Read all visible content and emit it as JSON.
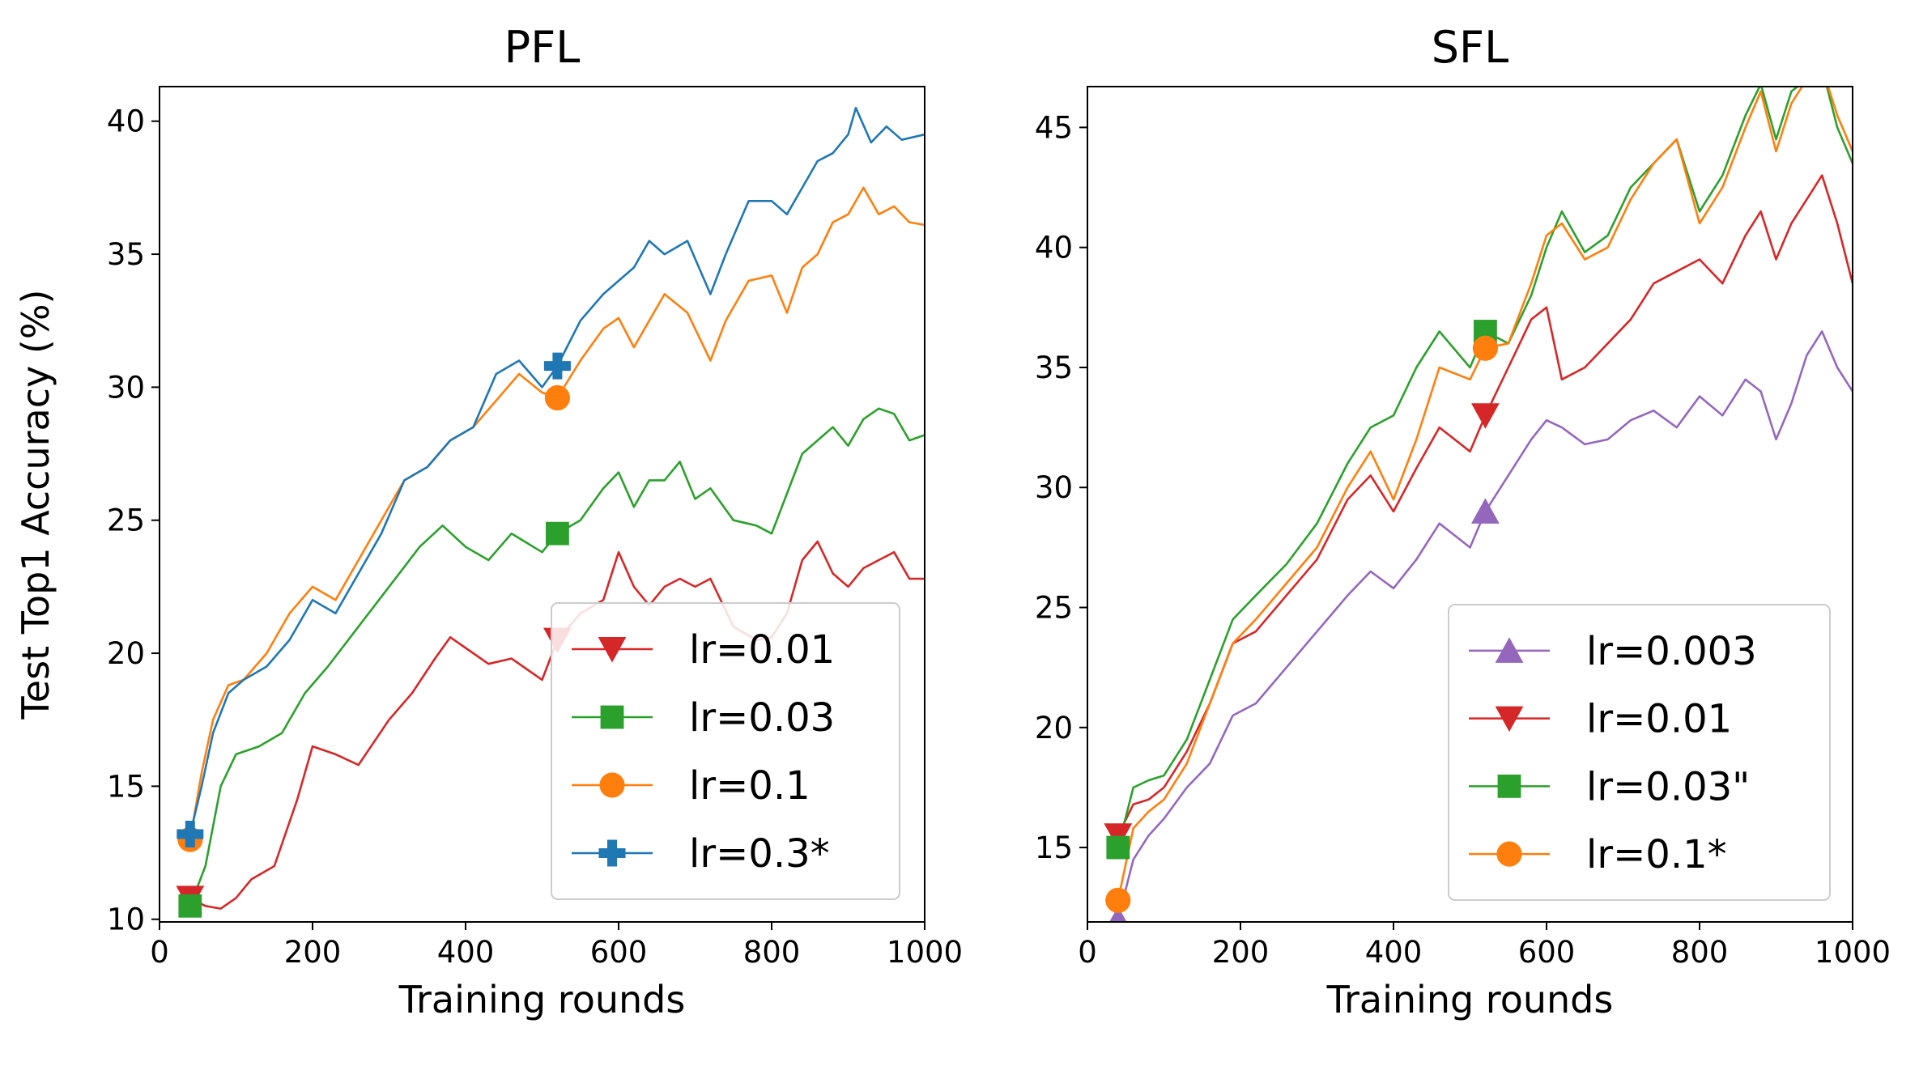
{
  "chart_data": [
    {
      "type": "line",
      "title": "PFL",
      "xlabel": "Training rounds",
      "ylabel": "Test Top1 Accuracy (%)",
      "xlim": [
        0,
        1000
      ],
      "ylim": [
        9.9,
        41.3
      ],
      "xticks": [
        0,
        200,
        400,
        600,
        800,
        1000
      ],
      "yticks": [
        10,
        15,
        20,
        25,
        30,
        35,
        40
      ],
      "grid": false,
      "legend_position": "lower-right",
      "series": [
        {
          "name": "lr=0.01",
          "color": "#d62728",
          "marker": "triangle-down",
          "x": [
            40,
            60,
            80,
            100,
            120,
            150,
            180,
            200,
            230,
            260,
            300,
            330,
            360,
            380,
            400,
            430,
            460,
            500,
            520,
            550,
            580,
            600,
            620,
            640,
            660,
            680,
            700,
            720,
            750,
            780,
            800,
            820,
            840,
            860,
            880,
            900,
            920,
            940,
            960,
            980,
            1000
          ],
          "y": [
            10.8,
            10.5,
            10.4,
            10.8,
            11.5,
            12.0,
            14.5,
            16.5,
            16.2,
            15.8,
            17.5,
            18.5,
            19.8,
            20.6,
            20.2,
            19.6,
            19.8,
            19.0,
            20.5,
            21.5,
            22.0,
            23.8,
            22.5,
            21.8,
            22.5,
            22.8,
            22.5,
            22.8,
            21.0,
            20.5,
            20.6,
            21.5,
            23.5,
            24.2,
            23.0,
            22.5,
            23.2,
            23.5,
            23.8,
            22.8,
            22.8
          ]
        },
        {
          "name": "lr=0.03",
          "color": "#2ca02c",
          "marker": "square",
          "x": [
            40,
            60,
            80,
            100,
            130,
            160,
            190,
            220,
            260,
            300,
            340,
            370,
            400,
            430,
            460,
            500,
            520,
            550,
            580,
            600,
            620,
            640,
            660,
            680,
            700,
            720,
            750,
            780,
            800,
            820,
            840,
            860,
            880,
            900,
            920,
            940,
            960,
            980,
            1000
          ],
          "y": [
            10.5,
            12.0,
            15.0,
            16.2,
            16.5,
            17.0,
            18.5,
            19.5,
            21.0,
            22.5,
            24.0,
            24.8,
            24.0,
            23.5,
            24.5,
            23.8,
            24.5,
            25.0,
            26.2,
            26.8,
            25.5,
            26.5,
            26.5,
            27.2,
            25.8,
            26.2,
            25.0,
            24.8,
            24.5,
            26.0,
            27.5,
            28.0,
            28.5,
            27.8,
            28.8,
            29.2,
            29.0,
            28.0,
            28.2
          ]
        },
        {
          "name": "lr=0.1",
          "color": "#ff7f0e",
          "marker": "circle",
          "x": [
            40,
            55,
            70,
            90,
            110,
            140,
            170,
            200,
            230,
            260,
            290,
            320,
            350,
            380,
            410,
            440,
            470,
            500,
            520,
            550,
            580,
            600,
            620,
            640,
            660,
            690,
            720,
            740,
            770,
            800,
            820,
            840,
            860,
            880,
            900,
            920,
            940,
            960,
            980,
            1000
          ],
          "y": [
            13.0,
            15.5,
            17.5,
            18.8,
            19.0,
            20.0,
            21.5,
            22.5,
            22.0,
            23.5,
            25.0,
            26.5,
            27.0,
            28.0,
            28.5,
            29.5,
            30.5,
            29.8,
            29.6,
            31.0,
            32.2,
            32.6,
            31.5,
            32.5,
            33.5,
            32.8,
            31.0,
            32.5,
            34.0,
            34.2,
            32.8,
            34.5,
            35.0,
            36.2,
            36.5,
            37.5,
            36.5,
            36.8,
            36.2,
            36.1
          ]
        },
        {
          "name": "lr=0.3*",
          "color": "#1f77b4",
          "marker": "plus",
          "x": [
            40,
            55,
            70,
            90,
            110,
            140,
            170,
            200,
            230,
            260,
            290,
            320,
            350,
            380,
            410,
            440,
            470,
            500,
            520,
            550,
            580,
            600,
            620,
            640,
            660,
            690,
            720,
            740,
            770,
            800,
            820,
            840,
            860,
            880,
            900,
            910,
            930,
            950,
            970,
            1000
          ],
          "y": [
            13.2,
            15.0,
            17.0,
            18.5,
            19.0,
            19.5,
            20.5,
            22.0,
            21.5,
            23.0,
            24.5,
            26.5,
            27.0,
            28.0,
            28.5,
            30.5,
            31.0,
            30.0,
            30.8,
            32.5,
            33.5,
            34.0,
            34.5,
            35.5,
            35.0,
            35.5,
            33.5,
            35.0,
            37.0,
            37.0,
            36.5,
            37.5,
            38.5,
            38.8,
            39.5,
            40.5,
            39.2,
            39.8,
            39.3,
            39.5
          ]
        }
      ]
    },
    {
      "type": "line",
      "title": "SFL",
      "xlabel": "Training rounds",
      "ylabel": "",
      "xlim": [
        0,
        1000
      ],
      "ylim": [
        11.9,
        46.7
      ],
      "xticks": [
        0,
        200,
        400,
        600,
        800,
        1000
      ],
      "yticks": [
        15,
        20,
        25,
        30,
        35,
        40,
        45
      ],
      "grid": false,
      "legend_position": "lower-right",
      "series": [
        {
          "name": "lr=0.003",
          "color": "#9467bd",
          "marker": "triangle-up",
          "x": [
            40,
            60,
            80,
            100,
            130,
            160,
            190,
            220,
            260,
            300,
            340,
            370,
            400,
            430,
            460,
            500,
            520,
            550,
            580,
            600,
            620,
            650,
            680,
            710,
            740,
            770,
            800,
            830,
            860,
            880,
            900,
            920,
            940,
            960,
            980,
            1000
          ],
          "y": [
            12.0,
            14.5,
            15.5,
            16.2,
            17.5,
            18.5,
            20.5,
            21.0,
            22.5,
            24.0,
            25.5,
            26.5,
            25.8,
            27.0,
            28.5,
            27.5,
            29.0,
            30.5,
            32.0,
            32.8,
            32.5,
            31.8,
            32.0,
            32.8,
            33.2,
            32.5,
            33.8,
            33.0,
            34.5,
            34.0,
            32.0,
            33.5,
            35.5,
            36.5,
            35.0,
            34.0
          ]
        },
        {
          "name": "lr=0.01",
          "color": "#d62728",
          "marker": "triangle-down",
          "x": [
            40,
            60,
            80,
            100,
            130,
            160,
            190,
            220,
            260,
            300,
            340,
            370,
            400,
            430,
            460,
            500,
            520,
            550,
            580,
            600,
            620,
            650,
            680,
            710,
            740,
            770,
            800,
            830,
            860,
            880,
            900,
            920,
            940,
            960,
            980,
            1000
          ],
          "y": [
            15.5,
            16.8,
            17.0,
            17.5,
            19.0,
            21.0,
            23.5,
            24.0,
            25.5,
            27.0,
            29.5,
            30.5,
            29.0,
            30.8,
            32.5,
            31.5,
            33.0,
            35.0,
            37.0,
            37.5,
            34.5,
            35.0,
            36.0,
            37.0,
            38.5,
            39.0,
            39.5,
            38.5,
            40.5,
            41.5,
            39.5,
            41.0,
            42.0,
            43.0,
            41.0,
            38.5
          ]
        },
        {
          "name": "lr=0.03\"",
          "color": "#2ca02c",
          "marker": "square",
          "x": [
            40,
            60,
            80,
            100,
            130,
            160,
            190,
            220,
            260,
            300,
            340,
            370,
            400,
            430,
            460,
            500,
            520,
            550,
            580,
            600,
            620,
            650,
            680,
            710,
            740,
            770,
            800,
            830,
            860,
            880,
            900,
            920,
            940,
            960,
            980,
            1000
          ],
          "y": [
            15.0,
            17.5,
            17.8,
            18.0,
            19.5,
            22.0,
            24.5,
            25.5,
            26.8,
            28.5,
            31.0,
            32.5,
            33.0,
            35.0,
            36.5,
            35.0,
            36.5,
            36.0,
            38.0,
            40.0,
            41.5,
            39.8,
            40.5,
            42.5,
            43.5,
            44.5,
            41.5,
            43.0,
            45.5,
            46.8,
            44.5,
            46.5,
            47.0,
            47.5,
            45.0,
            43.5
          ]
        },
        {
          "name": "lr=0.1*",
          "color": "#ff7f0e",
          "marker": "circle",
          "x": [
            40,
            60,
            80,
            100,
            130,
            160,
            190,
            220,
            260,
            300,
            340,
            370,
            400,
            430,
            460,
            500,
            520,
            550,
            580,
            600,
            620,
            650,
            680,
            710,
            740,
            770,
            800,
            830,
            860,
            880,
            900,
            920,
            940,
            960,
            980,
            1000
          ],
          "y": [
            12.8,
            15.8,
            16.5,
            17.0,
            18.5,
            21.0,
            23.5,
            24.5,
            26.0,
            27.5,
            30.0,
            31.5,
            29.5,
            32.0,
            35.0,
            34.5,
            35.8,
            36.0,
            38.5,
            40.5,
            41.0,
            39.5,
            40.0,
            42.0,
            43.5,
            44.5,
            41.0,
            42.5,
            45.0,
            46.5,
            44.0,
            46.0,
            47.0,
            47.5,
            45.5,
            44.0
          ]
        }
      ]
    }
  ]
}
